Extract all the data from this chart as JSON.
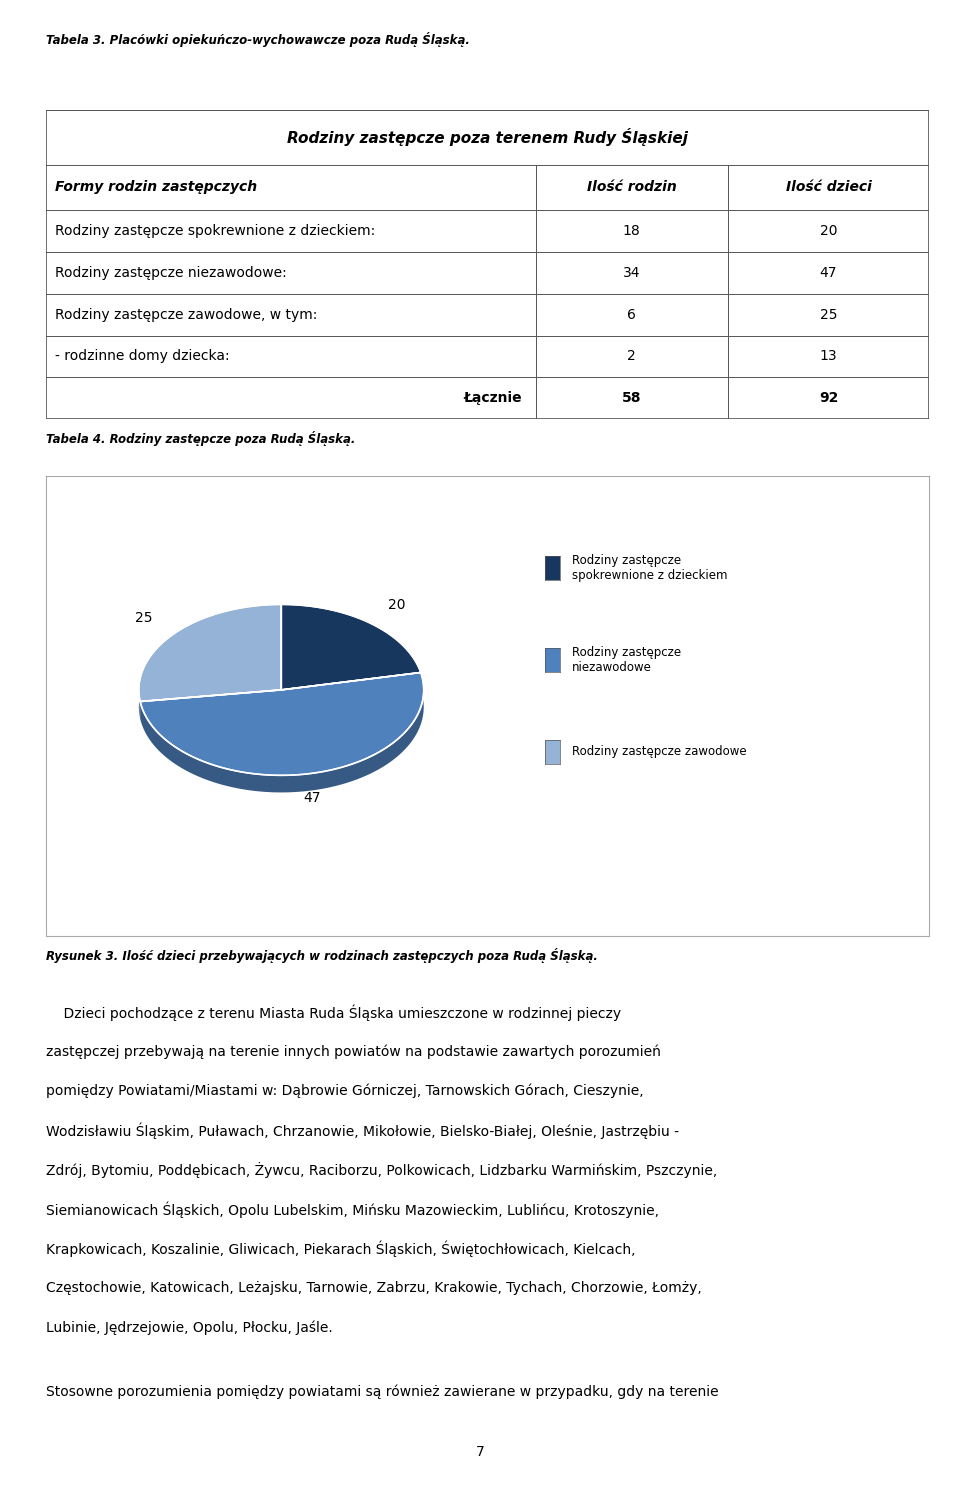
{
  "page_caption": "Tabela 3. Placówki opiekuńczo-wychowawcze poza Rudą Śląską.",
  "table_title": "Rodziny zastępcze poza terenem Rudy Śląskiej",
  "col_headers": [
    "Formy rodzin zastępczych",
    "Ilość rodzin",
    "Ilość dzieci"
  ],
  "rows": [
    [
      "Rodziny zastępcze spokrewnione z dzieckiem:",
      "18",
      "20"
    ],
    [
      "Rodziny zastępcze niezawodowe:",
      "34",
      "47"
    ],
    [
      "Rodziny zastępcze zawodowe, w tym:",
      "6",
      "25"
    ],
    [
      "- rodzinne domy dziecka:",
      "2",
      "13"
    ],
    [
      "Łącznie",
      "58",
      "92"
    ]
  ],
  "table_caption": "Tabela 4. Rodziny zastępcze poza Rudą Śląską.",
  "pie_values": [
    20,
    47,
    25
  ],
  "pie_colors": [
    "#17375E",
    "#4F81BD",
    "#95B3D7"
  ],
  "legend_labels": [
    "Rodziny zastępcze\nspokrewnione z dzieckiem",
    "Rodziny zastępcze\nniezawodowe",
    "Rodziny zastępcze zawodowe"
  ],
  "figure_caption": "Rysunek 3. Ilość dzieci przebywających w rodzinach zastępczych poza Rudą Śląską.",
  "body_lines": [
    "    Dzieci pochodzące z terenu Miasta Ruda Śląska umieszczone w rodzinnej pieczy",
    "zastępczej przebywają na terenie innych powiatów na podstawie zawartych porozumień",
    "pomiędzy Powiatami/Miastami w: Dąbrowie Górniczej, Tarnowskich Górach, Cieszynie,",
    "Wodzisławiu Śląskim, Puławach, Chrzanowie, Mikołowie, Bielsko-Białej, Oleśnie, Jastrzębiu -",
    "Zdrój, Bytomiu, Poddębicach, Żywcu, Raciborzu, Polkowicach, Lidzbarku Warmińskim, Pszczynie,",
    "Siemianowicach Śląskich, Opolu Lubelskim, Mińsku Mazowieckim, Lublińcu, Krotoszynie,",
    "Krapkowicach, Koszalinie, Gliwicach, Piekarach Śląskich, Świętochłowicach, Kielcach,",
    "Częstochowie, Katowicach, Leżajsku, Tarnowie, Zabrzu, Krakowie, Tychach, Chorzowie, Łomży,",
    "Lubinie, Jędrzejowie, Opolu, Płocku, Jaśle."
  ],
  "footer_text": "Stosowne porozumienia pomiędzy powiatami są również zawierane w przypadku, gdy na terenie",
  "page_number": "7",
  "bg_color": "#FFFFFF"
}
